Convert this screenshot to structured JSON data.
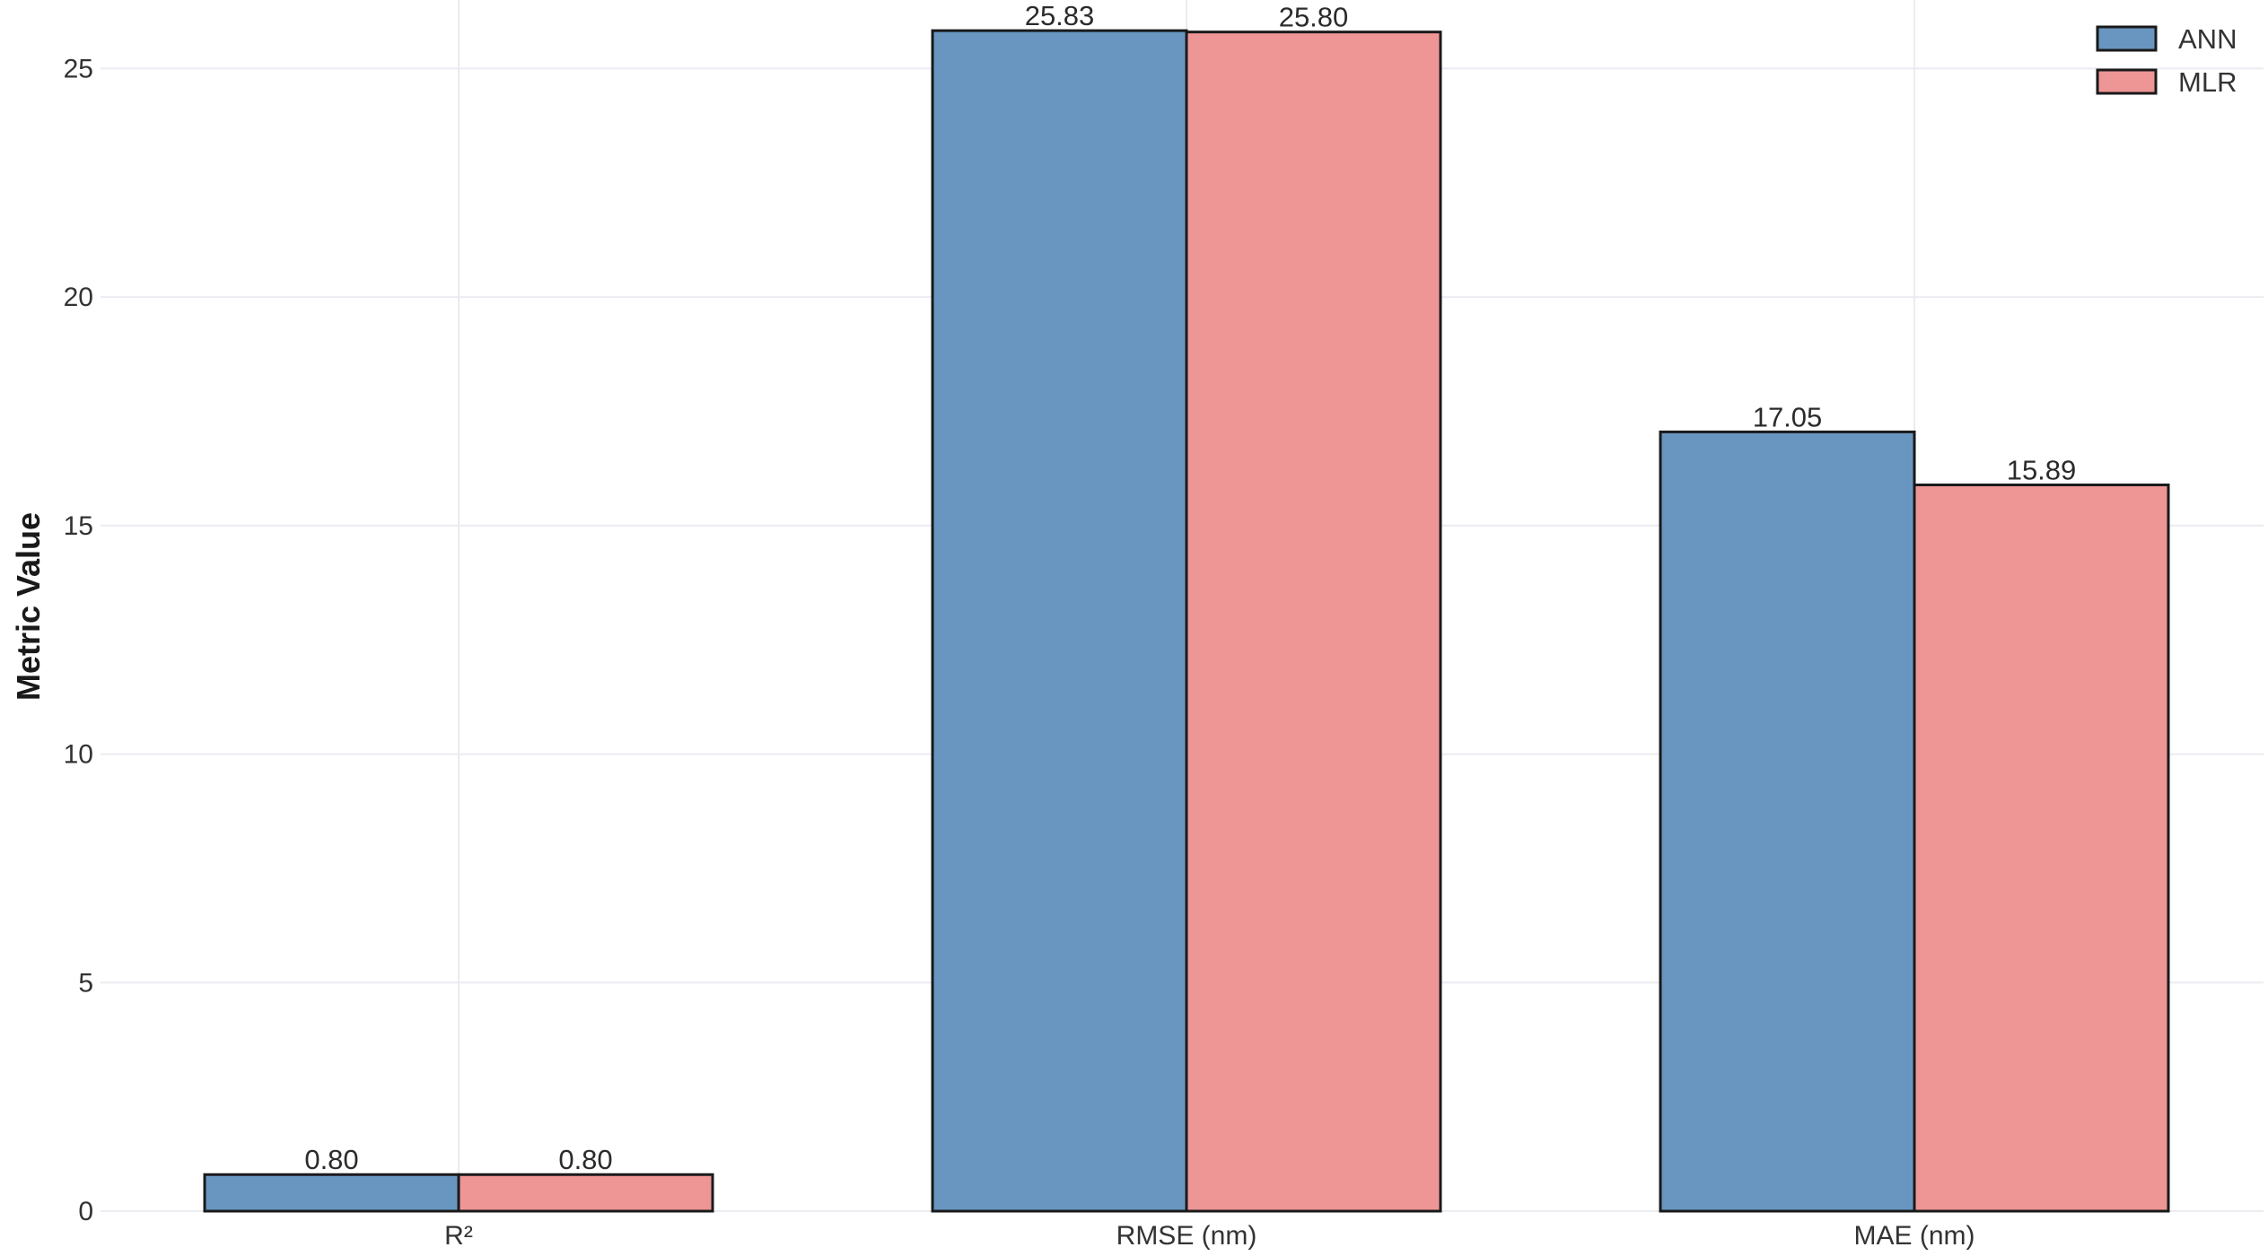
{
  "chart_data": {
    "type": "bar",
    "categories": [
      "R²",
      "RMSE (nm)",
      "MAE (nm)"
    ],
    "series": [
      {
        "name": "ANN",
        "values": [
          0.8,
          25.83,
          17.05
        ],
        "labels": [
          "0.80",
          "25.83",
          "17.05"
        ],
        "color": "#6896c0"
      },
      {
        "name": "MLR",
        "values": [
          0.8,
          25.8,
          15.89
        ],
        "labels": [
          "0.80",
          "25.80",
          "15.89"
        ],
        "color": "#ee9596"
      }
    ],
    "title": "",
    "xlabel": "",
    "ylabel": "Metric Value",
    "ylim": [
      0,
      26.5
    ],
    "yticks": [
      0,
      5,
      10,
      15,
      20,
      25
    ],
    "ytick_labels": [
      "0",
      "5",
      "10",
      "15",
      "20",
      "25"
    ],
    "grid": true,
    "legend_position": "top-right",
    "bar_edge_color": "#1a1a1a"
  }
}
